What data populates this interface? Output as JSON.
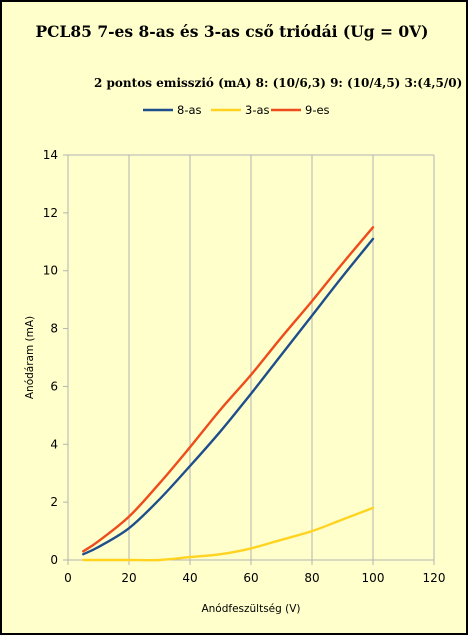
{
  "chart_data": {
    "type": "line",
    "title": "PCL85 7-es 8-as  és 3-as cső triódái (Ug = 0V)",
    "subtitle": "2 pontos emisszió (mA) 8: (10/6,3) 9: (10/4,5) 3:(4,5/0)",
    "xlabel": "Anódfeszültség (V)",
    "ylabel": "Anódáram  (mA)",
    "xlim": [
      0,
      120
    ],
    "ylim": [
      0,
      14
    ],
    "xticks": [
      0,
      20,
      40,
      60,
      80,
      100,
      120
    ],
    "yticks": [
      0,
      2,
      4,
      6,
      8,
      10,
      12,
      14
    ],
    "grid": "vertical",
    "legend_position": "top",
    "series": [
      {
        "name": "8-as",
        "color": "#1f4e8c",
        "points": [
          [
            5,
            0.2
          ],
          [
            10,
            0.45
          ],
          [
            20,
            1.1
          ],
          [
            30,
            2.1
          ],
          [
            40,
            3.25
          ],
          [
            50,
            4.45
          ],
          [
            60,
            5.75
          ],
          [
            70,
            7.1
          ],
          [
            80,
            8.45
          ],
          [
            90,
            9.8
          ],
          [
            100,
            11.1
          ]
        ]
      },
      {
        "name": "3-as",
        "color": "#ffd320",
        "points": [
          [
            5,
            0
          ],
          [
            10,
            0
          ],
          [
            20,
            0
          ],
          [
            30,
            0
          ],
          [
            40,
            0.1
          ],
          [
            50,
            0.2
          ],
          [
            60,
            0.4
          ],
          [
            70,
            0.7
          ],
          [
            80,
            1.0
          ],
          [
            90,
            1.4
          ],
          [
            100,
            1.8
          ]
        ]
      },
      {
        "name": "9-es",
        "color": "#ee4c1c",
        "points": [
          [
            5,
            0.3
          ],
          [
            10,
            0.65
          ],
          [
            20,
            1.5
          ],
          [
            30,
            2.65
          ],
          [
            40,
            3.9
          ],
          [
            50,
            5.2
          ],
          [
            60,
            6.4
          ],
          [
            70,
            7.7
          ],
          [
            80,
            8.95
          ],
          [
            90,
            10.25
          ],
          [
            100,
            11.5
          ]
        ]
      }
    ]
  }
}
